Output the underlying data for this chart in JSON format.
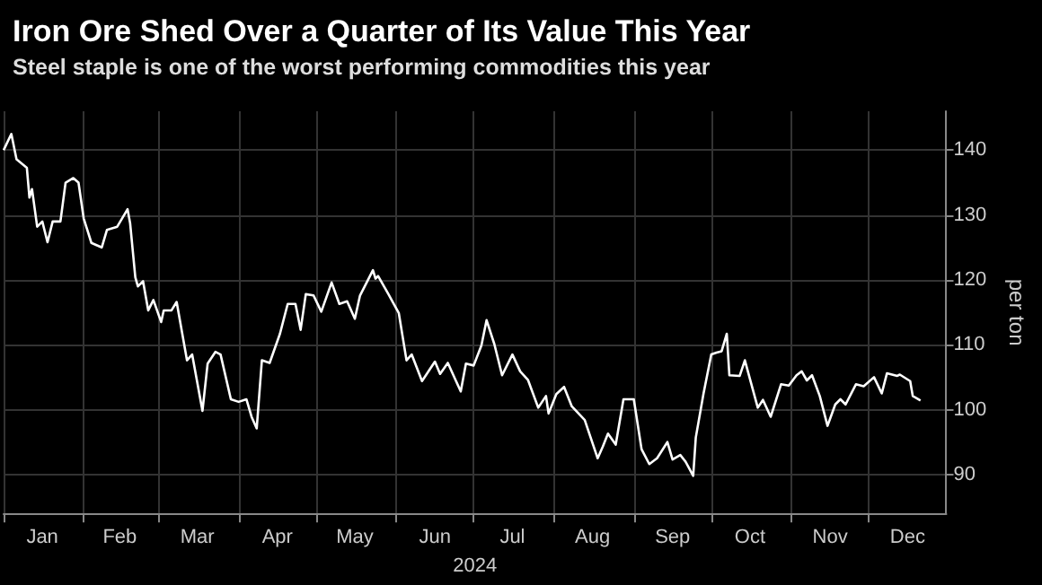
{
  "chart_data": {
    "type": "line",
    "title": "Iron Ore Shed Over a Quarter of Its Value This Year",
    "subtitle": "Steel staple is one of the worst performing commodities this year",
    "xlabel": "2024",
    "ylabel": "per ton",
    "x": [
      "2024-01-01",
      "2024-01-04",
      "2024-01-06",
      "2024-01-10",
      "2024-01-11",
      "2024-01-12",
      "2024-01-14",
      "2024-01-16",
      "2024-01-18",
      "2024-01-20",
      "2024-01-23",
      "2024-01-25",
      "2024-01-28",
      "2024-01-30",
      "2024-02-01",
      "2024-02-04",
      "2024-02-08",
      "2024-02-10",
      "2024-02-14",
      "2024-02-18",
      "2024-02-19",
      "2024-02-21",
      "2024-02-22",
      "2024-02-24",
      "2024-02-26",
      "2024-02-28",
      "2024-03-02",
      "2024-03-03",
      "2024-03-06",
      "2024-03-08",
      "2024-03-12",
      "2024-03-14",
      "2024-03-18",
      "2024-03-20",
      "2024-03-23",
      "2024-03-25",
      "2024-03-29",
      "2024-04-01",
      "2024-04-04",
      "2024-04-06",
      "2024-04-08",
      "2024-04-10",
      "2024-04-13",
      "2024-04-17",
      "2024-04-20",
      "2024-04-23",
      "2024-04-25",
      "2024-04-27",
      "2024-04-30",
      "2024-05-03",
      "2024-05-07",
      "2024-05-10",
      "2024-05-13",
      "2024-05-16",
      "2024-05-18",
      "2024-05-23",
      "2024-05-24",
      "2024-05-25",
      "2024-05-29",
      "2024-06-02",
      "2024-06-05",
      "2024-06-07",
      "2024-06-11",
      "2024-06-16",
      "2024-06-18",
      "2024-06-21",
      "2024-06-26",
      "2024-06-28",
      "2024-07-01",
      "2024-07-04",
      "2024-07-06",
      "2024-07-09",
      "2024-07-12",
      "2024-07-16",
      "2024-07-19",
      "2024-07-22",
      "2024-07-26",
      "2024-07-29",
      "2024-07-30",
      "2024-08-02",
      "2024-08-05",
      "2024-08-08",
      "2024-08-13",
      "2024-08-18",
      "2024-08-20",
      "2024-08-22",
      "2024-08-25",
      "2024-08-28",
      "2024-09-01",
      "2024-09-04",
      "2024-09-07",
      "2024-09-10",
      "2024-09-14",
      "2024-09-16",
      "2024-09-19",
      "2024-09-21",
      "2024-09-24",
      "2024-09-25",
      "2024-09-28",
      "2024-10-01",
      "2024-10-03",
      "2024-10-05",
      "2024-10-07",
      "2024-10-08",
      "2024-10-12",
      "2024-10-14",
      "2024-10-19",
      "2024-10-21",
      "2024-10-24",
      "2024-10-28",
      "2024-10-31",
      "2024-11-03",
      "2024-11-05",
      "2024-11-07",
      "2024-11-09",
      "2024-11-12",
      "2024-11-15",
      "2024-11-18",
      "2024-11-20",
      "2024-11-22",
      "2024-11-26",
      "2024-11-29",
      "2024-12-03",
      "2024-12-06",
      "2024-12-08",
      "2024-12-12",
      "2024-12-13",
      "2024-12-17",
      "2024-12-18",
      "2024-12-21"
    ],
    "series": [
      {
        "color": "#ffffff",
        "values": [
          140,
          142.5,
          138.6,
          137.3,
          132.7,
          134,
          128.2,
          129,
          125.8,
          129,
          129,
          135,
          135.7,
          135,
          129.5,
          125.7,
          125,
          127.7,
          128.2,
          130.9,
          128.7,
          120.4,
          119,
          119.8,
          115.3,
          116.9,
          113.5,
          115.3,
          115.3,
          116.6,
          107.6,
          108.5,
          99.8,
          107.1,
          108.9,
          108.5,
          101.6,
          101.2,
          101.6,
          98.9,
          97.1,
          107.6,
          107.2,
          111.7,
          116.3,
          116.3,
          112.3,
          117.8,
          117.6,
          115.1,
          119.6,
          116.3,
          116.7,
          114,
          117.6,
          121.5,
          120.2,
          120.6,
          117.8,
          114.9,
          107.6,
          108.5,
          104.4,
          107.4,
          105.5,
          107.2,
          102.8,
          107.1,
          106.8,
          109.9,
          113.8,
          110.1,
          105.3,
          108.5,
          105.9,
          104.6,
          100.3,
          102.1,
          99.4,
          102.4,
          103.5,
          100.5,
          98.4,
          92.5,
          94.3,
          96.3,
          94.6,
          101.6,
          101.6,
          93.9,
          91.6,
          92.5,
          95,
          92.3,
          93,
          92,
          89.8,
          95.7,
          102.5,
          108.5,
          108.8,
          109,
          111.7,
          105.3,
          105.2,
          107.6,
          100.3,
          101.5,
          98.9,
          103.9,
          103.7,
          105.3,
          105.9,
          104.5,
          105.3,
          102.1,
          97.5,
          100.8,
          101.6,
          100.8,
          103.9,
          103.6,
          105,
          102.5,
          105.6,
          105.2,
          105.4,
          104.4,
          102.1,
          101.4
        ]
      }
    ],
    "xlim": [
      "2024-01-01",
      "2024-12-31"
    ],
    "xticks": [
      {
        "value": "2024-01-01",
        "label": null
      },
      {
        "value": "2024-01-16",
        "label": "Jan"
      },
      {
        "value": "2024-02-01",
        "label": null
      },
      {
        "value": "2024-02-15",
        "label": "Feb"
      },
      {
        "value": "2024-03-01",
        "label": null
      },
      {
        "value": "2024-03-16",
        "label": "Mar"
      },
      {
        "value": "2024-04-01",
        "label": null
      },
      {
        "value": "2024-04-16",
        "label": "Apr"
      },
      {
        "value": "2024-05-01",
        "label": null
      },
      {
        "value": "2024-05-16",
        "label": "May"
      },
      {
        "value": "2024-06-01",
        "label": null
      },
      {
        "value": "2024-06-16",
        "label": "Jun"
      },
      {
        "value": "2024-07-01",
        "label": null
      },
      {
        "value": "2024-07-16",
        "label": "Jul"
      },
      {
        "value": "2024-08-01",
        "label": null
      },
      {
        "value": "2024-08-16",
        "label": "Aug"
      },
      {
        "value": "2024-09-01",
        "label": null
      },
      {
        "value": "2024-09-16",
        "label": "Sep"
      },
      {
        "value": "2024-10-01",
        "label": null
      },
      {
        "value": "2024-10-16",
        "label": "Oct"
      },
      {
        "value": "2024-11-01",
        "label": null
      },
      {
        "value": "2024-11-16",
        "label": "Nov"
      },
      {
        "value": "2024-12-01",
        "label": null
      },
      {
        "value": "2024-12-16",
        "label": "Dec"
      }
    ],
    "ylim": [
      84,
      146
    ],
    "yticks": [
      90,
      100,
      110,
      120,
      130,
      140
    ],
    "grid": true,
    "marker": "none",
    "line_style": "solid"
  }
}
